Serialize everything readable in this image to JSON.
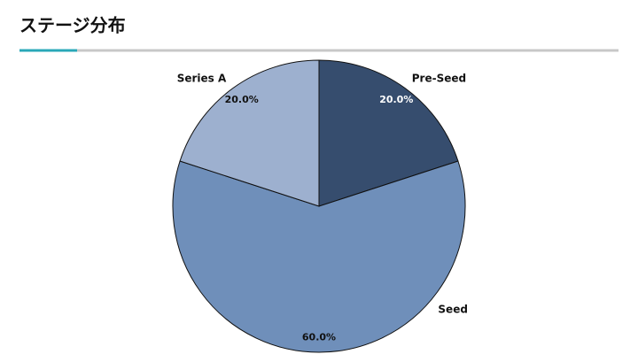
{
  "chart_data": {
    "type": "pie",
    "title": "ステージ分布",
    "categories": [
      "Pre-Seed",
      "Seed",
      "Series A"
    ],
    "values": [
      20,
      60,
      20
    ],
    "value_labels": [
      "20.0%",
      "60.0%",
      "20.0%"
    ],
    "colors": [
      "#364d6e",
      "#6f8fba",
      "#9db0cf"
    ]
  }
}
